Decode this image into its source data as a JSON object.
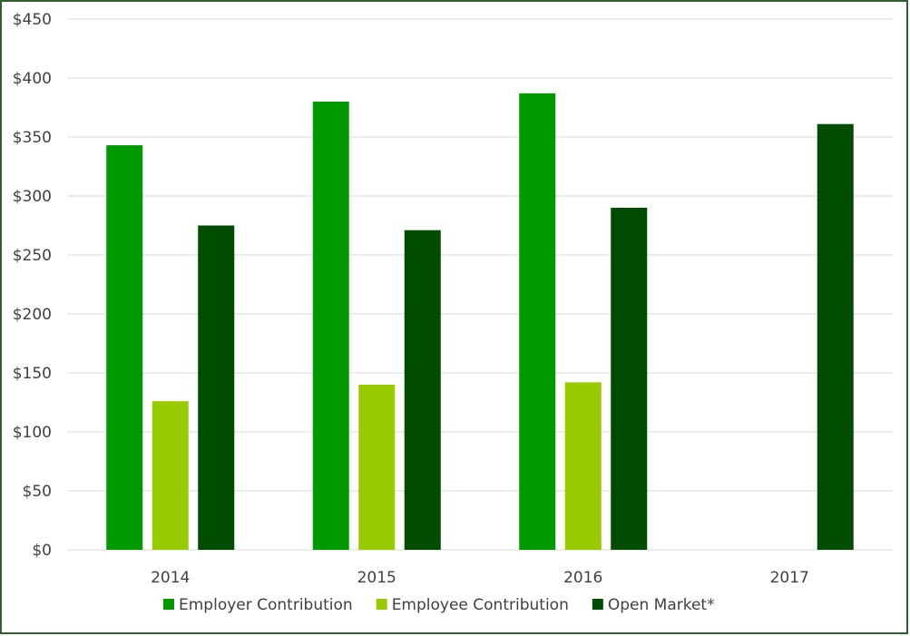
{
  "chart_data": {
    "type": "bar",
    "title": "",
    "xlabel": "",
    "ylabel": "",
    "categories": [
      "2014",
      "2015",
      "2016",
      "2017"
    ],
    "ylim": [
      0,
      450
    ],
    "ytick_values": [
      0,
      50,
      100,
      150,
      200,
      250,
      300,
      350,
      400,
      450
    ],
    "ytick_labels": [
      "$0",
      "$50",
      "$100",
      "$150",
      "$200",
      "$250",
      "$300",
      "$350",
      "$400",
      "$450"
    ],
    "grid": true,
    "legend_position": "bottom",
    "series": [
      {
        "name": "Employer Contribution",
        "color": "#009900",
        "values": [
          343,
          380,
          387,
          null
        ]
      },
      {
        "name": "Employee Contribution",
        "color": "#99CC00",
        "values": [
          126,
          140,
          142,
          null
        ]
      },
      {
        "name": "Open Market*",
        "color": "#004C00",
        "values": [
          275,
          271,
          290,
          361
        ]
      }
    ]
  },
  "colors": {
    "gridline": "#d9d9d9",
    "frame_border": "#2e5f2e",
    "text": "#404040"
  }
}
